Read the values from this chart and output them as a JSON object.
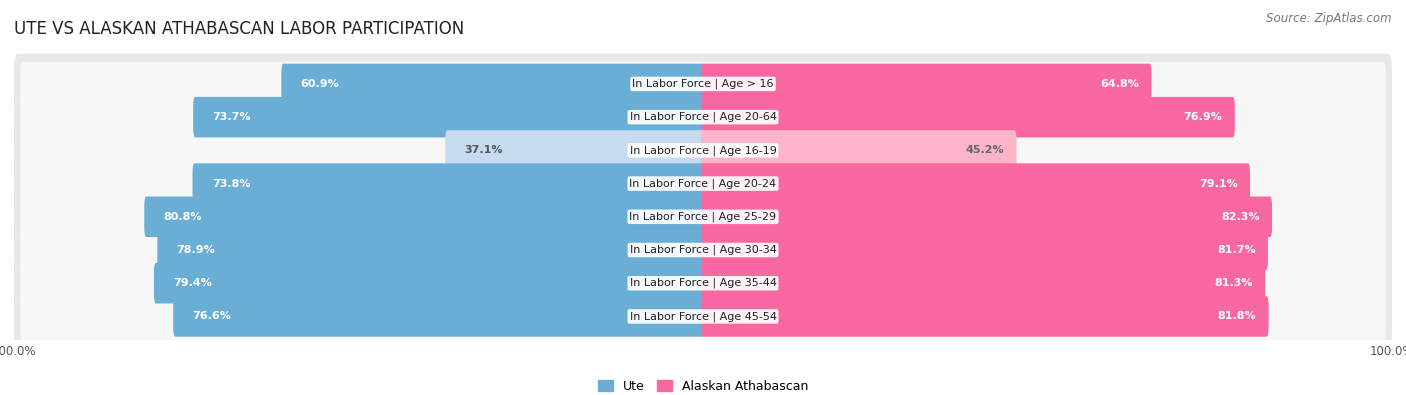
{
  "title": "UTE VS ALASKAN ATHABASCAN LABOR PARTICIPATION",
  "source": "Source: ZipAtlas.com",
  "categories": [
    "In Labor Force | Age > 16",
    "In Labor Force | Age 20-64",
    "In Labor Force | Age 16-19",
    "In Labor Force | Age 20-24",
    "In Labor Force | Age 25-29",
    "In Labor Force | Age 30-34",
    "In Labor Force | Age 35-44",
    "In Labor Force | Age 45-54"
  ],
  "ute_values": [
    60.9,
    73.7,
    37.1,
    73.8,
    80.8,
    78.9,
    79.4,
    76.6
  ],
  "alaskan_values": [
    64.8,
    76.9,
    45.2,
    79.1,
    82.3,
    81.7,
    81.3,
    81.8
  ],
  "ute_color_full": "#6aaed6",
  "ute_color_light": "#c6dbef",
  "alaskan_color_full": "#f768a1",
  "alaskan_color_light": "#fbb4c8",
  "row_bg_color": "#e8e8e8",
  "row_inner_color": "#f7f7f7",
  "max_value": 100.0,
  "legend_ute": "Ute",
  "legend_alaskan": "Alaskan Athabascan",
  "title_fontsize": 12,
  "source_fontsize": 8.5,
  "cat_fontsize": 8,
  "value_fontsize": 8
}
